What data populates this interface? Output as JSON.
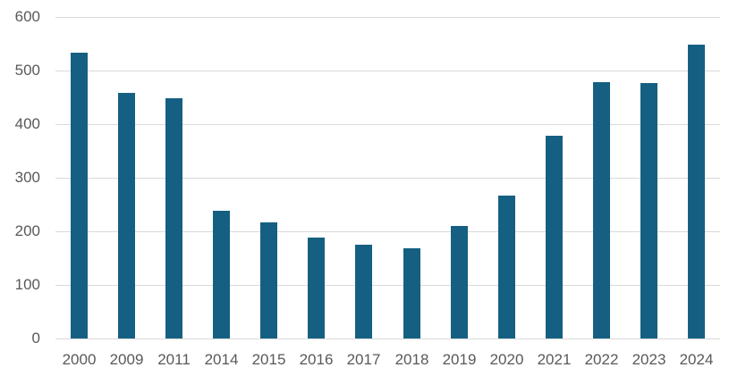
{
  "chart_data": {
    "type": "bar",
    "title": "",
    "xlabel": "",
    "ylabel": "",
    "categories": [
      "2000",
      "2009",
      "2011",
      "2014",
      "2015",
      "2016",
      "2017",
      "2018",
      "2019",
      "2020",
      "2021",
      "2022",
      "2023",
      "2024"
    ],
    "values": [
      534,
      458,
      448,
      238,
      216,
      189,
      175,
      169,
      210,
      266,
      379,
      479,
      476,
      548
    ],
    "ylim": [
      0,
      600
    ],
    "y_ticks": [
      600,
      500,
      400,
      300,
      200,
      100,
      0
    ],
    "grid": true,
    "legend": false,
    "colors": {
      "bar": "#156082",
      "gridline": "#d9d9d9",
      "tick_label": "#595959",
      "background": "#ffffff"
    }
  }
}
